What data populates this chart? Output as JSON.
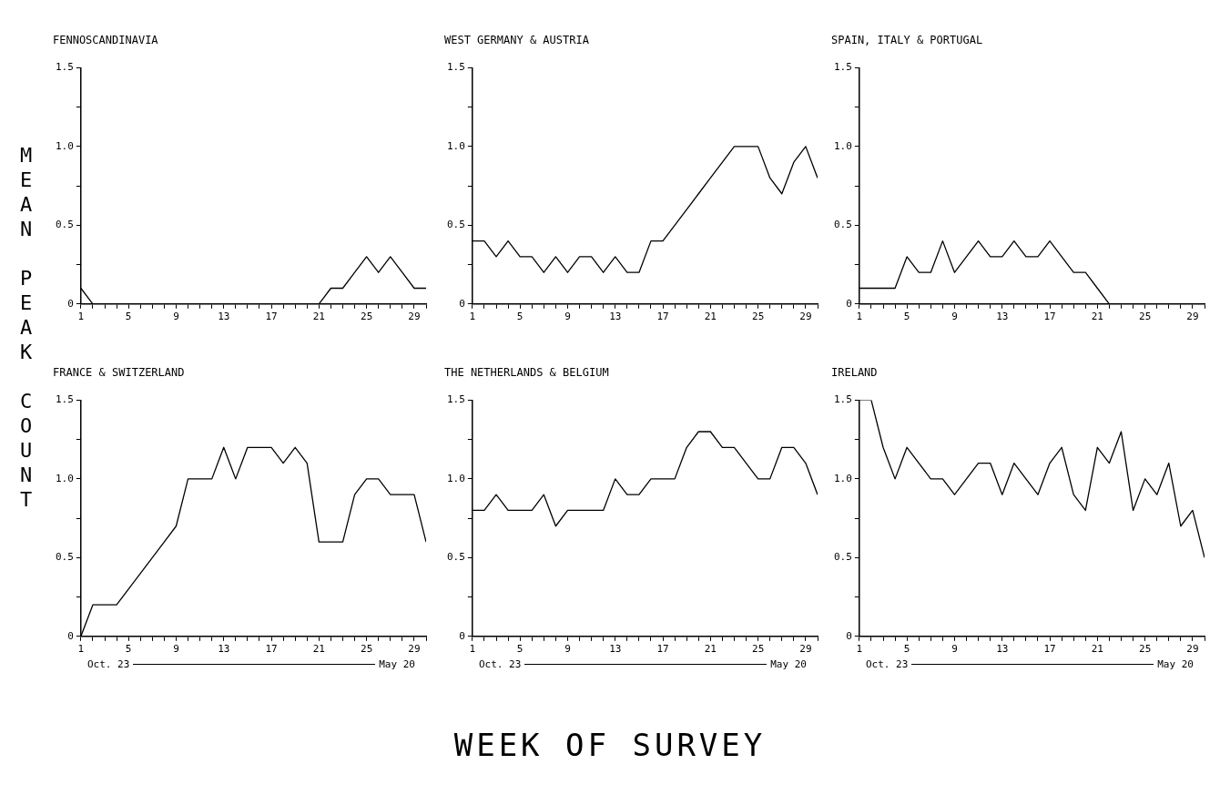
{
  "chart_data": [
    {
      "type": "line",
      "title": "FENNOSCANDINAVIA",
      "ylabel": "MEAN PEAK COUNT",
      "x": [
        1,
        2,
        3,
        4,
        5,
        6,
        7,
        8,
        9,
        10,
        11,
        12,
        13,
        14,
        15,
        16,
        17,
        18,
        19,
        20,
        21,
        22,
        23,
        24,
        25,
        26,
        27,
        28,
        29,
        30
      ],
      "series": [
        {
          "color": "#000000",
          "values": [
            0.1,
            0,
            0,
            0,
            0,
            0,
            0,
            0,
            0,
            0,
            0,
            0,
            0,
            0,
            0,
            0,
            0,
            0,
            0,
            0,
            0,
            0.1,
            0.1,
            0.2,
            0.3,
            0.2,
            0.3,
            0.2,
            0.1,
            0.1
          ]
        }
      ],
      "xlim": [
        1,
        30
      ],
      "xticks": [
        1,
        {
          "value": 2,
          "label": null
        },
        {
          "value": 3,
          "label": null
        },
        {
          "value": 4,
          "label": null
        },
        5,
        {
          "value": 6,
          "label": null
        },
        {
          "value": 7,
          "label": null
        },
        {
          "value": 8,
          "label": null
        },
        9,
        {
          "value": 10,
          "label": null
        },
        {
          "value": 11,
          "label": null
        },
        {
          "value": 12,
          "label": null
        },
        13,
        {
          "value": 14,
          "label": null
        },
        {
          "value": 15,
          "label": null
        },
        {
          "value": 16,
          "label": null
        },
        17,
        {
          "value": 18,
          "label": null
        },
        {
          "value": 19,
          "label": null
        },
        {
          "value": 20,
          "label": null
        },
        21,
        {
          "value": 22,
          "label": null
        },
        {
          "value": 23,
          "label": null
        },
        {
          "value": 24,
          "label": null
        },
        25,
        {
          "value": 26,
          "label": null
        },
        {
          "value": 27,
          "label": null
        },
        {
          "value": 28,
          "label": null
        },
        29,
        {
          "value": 30,
          "label": null
        }
      ],
      "ylim": [
        0,
        1.5
      ],
      "yticks": [
        0,
        {
          "value": 0.25,
          "label": null
        },
        0.5,
        {
          "value": 0.75,
          "label": null
        },
        {
          "value": 1,
          "label": "1.0"
        },
        {
          "value": 1.25,
          "label": null
        },
        1.5
      ],
      "grid": false,
      "marker": "none",
      "line_style": "solid"
    },
    {
      "type": "line",
      "title": "WEST GERMANY & AUSTRIA",
      "x": [
        1,
        2,
        3,
        4,
        5,
        6,
        7,
        8,
        9,
        10,
        11,
        12,
        13,
        14,
        15,
        16,
        17,
        18,
        19,
        20,
        21,
        22,
        23,
        24,
        25,
        26,
        27,
        28,
        29,
        30
      ],
      "series": [
        {
          "color": "#000000",
          "values": [
            0.4,
            0.4,
            0.3,
            0.4,
            0.3,
            0.3,
            0.2,
            0.3,
            0.2,
            0.3,
            0.3,
            0.2,
            0.3,
            0.2,
            0.2,
            0.4,
            0.4,
            0.5,
            0.6,
            0.7,
            0.8,
            0.9,
            1.0,
            1.0,
            1.0,
            0.8,
            0.7,
            0.9,
            1.0,
            0.8
          ]
        }
      ],
      "xlim": [
        1,
        30
      ],
      "xticks": [
        1,
        {
          "value": 2,
          "label": null
        },
        {
          "value": 3,
          "label": null
        },
        {
          "value": 4,
          "label": null
        },
        5,
        {
          "value": 6,
          "label": null
        },
        {
          "value": 7,
          "label": null
        },
        {
          "value": 8,
          "label": null
        },
        9,
        {
          "value": 10,
          "label": null
        },
        {
          "value": 11,
          "label": null
        },
        {
          "value": 12,
          "label": null
        },
        13,
        {
          "value": 14,
          "label": null
        },
        {
          "value": 15,
          "label": null
        },
        {
          "value": 16,
          "label": null
        },
        17,
        {
          "value": 18,
          "label": null
        },
        {
          "value": 19,
          "label": null
        },
        {
          "value": 20,
          "label": null
        },
        21,
        {
          "value": 22,
          "label": null
        },
        {
          "value": 23,
          "label": null
        },
        {
          "value": 24,
          "label": null
        },
        25,
        {
          "value": 26,
          "label": null
        },
        {
          "value": 27,
          "label": null
        },
        {
          "value": 28,
          "label": null
        },
        29,
        {
          "value": 30,
          "label": null
        }
      ],
      "ylim": [
        0,
        1.5
      ],
      "yticks": [
        0,
        {
          "value": 0.25,
          "label": null
        },
        0.5,
        {
          "value": 0.75,
          "label": null
        },
        {
          "value": 1,
          "label": "1.0"
        },
        {
          "value": 1.25,
          "label": null
        },
        1.5
      ],
      "grid": false,
      "marker": "none",
      "line_style": "solid"
    },
    {
      "type": "line",
      "title": "SPAIN, ITALY & PORTUGAL",
      "x": [
        1,
        2,
        3,
        4,
        5,
        6,
        7,
        8,
        9,
        10,
        11,
        12,
        13,
        14,
        15,
        16,
        17,
        18,
        19,
        20,
        21,
        22,
        23,
        24,
        25,
        26,
        27,
        28,
        29,
        30
      ],
      "series": [
        {
          "color": "#000000",
          "values": [
            0.1,
            0.1,
            0.1,
            0.1,
            0.3,
            0.2,
            0.2,
            0.4,
            0.2,
            0.3,
            0.4,
            0.3,
            0.3,
            0.4,
            0.3,
            0.3,
            0.4,
            0.3,
            0.2,
            0.2,
            0.1,
            0,
            0,
            0,
            0,
            0,
            0,
            0,
            0,
            0
          ]
        }
      ],
      "xlim": [
        1,
        30
      ],
      "xticks": [
        1,
        {
          "value": 2,
          "label": null
        },
        {
          "value": 3,
          "label": null
        },
        {
          "value": 4,
          "label": null
        },
        5,
        {
          "value": 6,
          "label": null
        },
        {
          "value": 7,
          "label": null
        },
        {
          "value": 8,
          "label": null
        },
        9,
        {
          "value": 10,
          "label": null
        },
        {
          "value": 11,
          "label": null
        },
        {
          "value": 12,
          "label": null
        },
        13,
        {
          "value": 14,
          "label": null
        },
        {
          "value": 15,
          "label": null
        },
        {
          "value": 16,
          "label": null
        },
        17,
        {
          "value": 18,
          "label": null
        },
        {
          "value": 19,
          "label": null
        },
        {
          "value": 20,
          "label": null
        },
        21,
        {
          "value": 22,
          "label": null
        },
        {
          "value": 23,
          "label": null
        },
        {
          "value": 24,
          "label": null
        },
        25,
        {
          "value": 26,
          "label": null
        },
        {
          "value": 27,
          "label": null
        },
        {
          "value": 28,
          "label": null
        },
        29,
        {
          "value": 30,
          "label": null
        }
      ],
      "ylim": [
        0,
        1.5
      ],
      "yticks": [
        0,
        {
          "value": 0.25,
          "label": null
        },
        0.5,
        {
          "value": 0.75,
          "label": null
        },
        {
          "value": 1,
          "label": "1.0"
        },
        {
          "value": 1.25,
          "label": null
        },
        1.5
      ],
      "grid": false,
      "marker": "none",
      "line_style": "solid"
    },
    {
      "type": "line",
      "title": "FRANCE & SWITZERLAND",
      "annotations": [
        "Oct. 23",
        "May 20"
      ],
      "x": [
        1,
        2,
        3,
        4,
        5,
        6,
        7,
        8,
        9,
        10,
        11,
        12,
        13,
        14,
        15,
        16,
        17,
        18,
        19,
        20,
        21,
        22,
        23,
        24,
        25,
        26,
        27,
        28,
        29,
        30
      ],
      "series": [
        {
          "color": "#000000",
          "values": [
            0,
            0.2,
            0.2,
            0.2,
            0.3,
            0.4,
            0.5,
            0.6,
            0.7,
            1.0,
            1.0,
            1.0,
            1.2,
            1.0,
            1.2,
            1.2,
            1.2,
            1.1,
            1.2,
            1.1,
            0.6,
            0.6,
            0.6,
            0.9,
            1.0,
            1.0,
            0.9,
            0.9,
            0.9,
            0.6
          ]
        }
      ],
      "xlim": [
        1,
        30
      ],
      "xticks": [
        1,
        {
          "value": 2,
          "label": null
        },
        {
          "value": 3,
          "label": null
        },
        {
          "value": 4,
          "label": null
        },
        5,
        {
          "value": 6,
          "label": null
        },
        {
          "value": 7,
          "label": null
        },
        {
          "value": 8,
          "label": null
        },
        9,
        {
          "value": 10,
          "label": null
        },
        {
          "value": 11,
          "label": null
        },
        {
          "value": 12,
          "label": null
        },
        13,
        {
          "value": 14,
          "label": null
        },
        {
          "value": 15,
          "label": null
        },
        {
          "value": 16,
          "label": null
        },
        17,
        {
          "value": 18,
          "label": null
        },
        {
          "value": 19,
          "label": null
        },
        {
          "value": 20,
          "label": null
        },
        21,
        {
          "value": 22,
          "label": null
        },
        {
          "value": 23,
          "label": null
        },
        {
          "value": 24,
          "label": null
        },
        25,
        {
          "value": 26,
          "label": null
        },
        {
          "value": 27,
          "label": null
        },
        {
          "value": 28,
          "label": null
        },
        29,
        {
          "value": 30,
          "label": null
        }
      ],
      "ylim": [
        0,
        1.5
      ],
      "yticks": [
        0,
        {
          "value": 0.25,
          "label": null
        },
        0.5,
        {
          "value": 0.75,
          "label": null
        },
        {
          "value": 1,
          "label": "1.0"
        },
        {
          "value": 1.25,
          "label": null
        },
        1.5
      ],
      "grid": false,
      "marker": "none",
      "line_style": "solid"
    },
    {
      "type": "line",
      "title": "THE NETHERLANDS & BELGIUM",
      "xlabel": "WEEK OF SURVEY",
      "annotations": [
        "Oct. 23",
        "May 20"
      ],
      "x": [
        1,
        2,
        3,
        4,
        5,
        6,
        7,
        8,
        9,
        10,
        11,
        12,
        13,
        14,
        15,
        16,
        17,
        18,
        19,
        20,
        21,
        22,
        23,
        24,
        25,
        26,
        27,
        28,
        29,
        30
      ],
      "series": [
        {
          "color": "#000000",
          "values": [
            0.8,
            0.8,
            0.9,
            0.8,
            0.8,
            0.8,
            0.9,
            0.7,
            0.8,
            0.8,
            0.8,
            0.8,
            1.0,
            0.9,
            0.9,
            1.0,
            1.0,
            1.0,
            1.2,
            1.3,
            1.3,
            1.2,
            1.2,
            1.1,
            1.0,
            1.0,
            1.2,
            1.2,
            1.1,
            0.9
          ]
        }
      ],
      "xlim": [
        1,
        30
      ],
      "xticks": [
        1,
        {
          "value": 2,
          "label": null
        },
        {
          "value": 3,
          "label": null
        },
        {
          "value": 4,
          "label": null
        },
        5,
        {
          "value": 6,
          "label": null
        },
        {
          "value": 7,
          "label": null
        },
        {
          "value": 8,
          "label": null
        },
        9,
        {
          "value": 10,
          "label": null
        },
        {
          "value": 11,
          "label": null
        },
        {
          "value": 12,
          "label": null
        },
        13,
        {
          "value": 14,
          "label": null
        },
        {
          "value": 15,
          "label": null
        },
        {
          "value": 16,
          "label": null
        },
        17,
        {
          "value": 18,
          "label": null
        },
        {
          "value": 19,
          "label": null
        },
        {
          "value": 20,
          "label": null
        },
        21,
        {
          "value": 22,
          "label": null
        },
        {
          "value": 23,
          "label": null
        },
        {
          "value": 24,
          "label": null
        },
        25,
        {
          "value": 26,
          "label": null
        },
        {
          "value": 27,
          "label": null
        },
        {
          "value": 28,
          "label": null
        },
        29,
        {
          "value": 30,
          "label": null
        }
      ],
      "ylim": [
        0,
        1.5
      ],
      "yticks": [
        0,
        {
          "value": 0.25,
          "label": null
        },
        0.5,
        {
          "value": 0.75,
          "label": null
        },
        {
          "value": 1,
          "label": "1.0"
        },
        {
          "value": 1.25,
          "label": null
        },
        1.5
      ],
      "grid": false,
      "marker": "none",
      "line_style": "solid"
    },
    {
      "type": "line",
      "title": "IRELAND",
      "annotations": [
        "Oct. 23",
        "May 20"
      ],
      "x": [
        1,
        2,
        3,
        4,
        5,
        6,
        7,
        8,
        9,
        10,
        11,
        12,
        13,
        14,
        15,
        16,
        17,
        18,
        19,
        20,
        21,
        22,
        23,
        24,
        25,
        26,
        27,
        28,
        29,
        30
      ],
      "series": [
        {
          "color": "#000000",
          "values": [
            1.5,
            1.5,
            1.2,
            1.0,
            1.2,
            1.1,
            1.0,
            1.0,
            0.9,
            1.0,
            1.1,
            1.1,
            0.9,
            1.1,
            1.0,
            0.9,
            1.1,
            1.2,
            0.9,
            0.8,
            1.2,
            1.1,
            1.3,
            0.8,
            1.0,
            0.9,
            1.1,
            0.7,
            0.8,
            0.5
          ]
        }
      ],
      "xlim": [
        1,
        30
      ],
      "xticks": [
        1,
        {
          "value": 2,
          "label": null
        },
        {
          "value": 3,
          "label": null
        },
        {
          "value": 4,
          "label": null
        },
        5,
        {
          "value": 6,
          "label": null
        },
        {
          "value": 7,
          "label": null
        },
        {
          "value": 8,
          "label": null
        },
        9,
        {
          "value": 10,
          "label": null
        },
        {
          "value": 11,
          "label": null
        },
        {
          "value": 12,
          "label": null
        },
        13,
        {
          "value": 14,
          "label": null
        },
        {
          "value": 15,
          "label": null
        },
        {
          "value": 16,
          "label": null
        },
        17,
        {
          "value": 18,
          "label": null
        },
        {
          "value": 19,
          "label": null
        },
        {
          "value": 20,
          "label": null
        },
        21,
        {
          "value": 22,
          "label": null
        },
        {
          "value": 23,
          "label": null
        },
        {
          "value": 24,
          "label": null
        },
        25,
        {
          "value": 26,
          "label": null
        },
        {
          "value": 27,
          "label": null
        },
        {
          "value": 28,
          "label": null
        },
        29,
        {
          "value": 30,
          "label": null
        }
      ],
      "ylim": [
        0,
        1.5
      ],
      "yticks": [
        0,
        {
          "value": 0.25,
          "label": null
        },
        0.5,
        {
          "value": 0.75,
          "label": null
        },
        {
          "value": 1,
          "label": "1.0"
        },
        {
          "value": 1.25,
          "label": null
        },
        1.5
      ],
      "grid": false,
      "marker": "none",
      "line_style": "solid"
    }
  ]
}
